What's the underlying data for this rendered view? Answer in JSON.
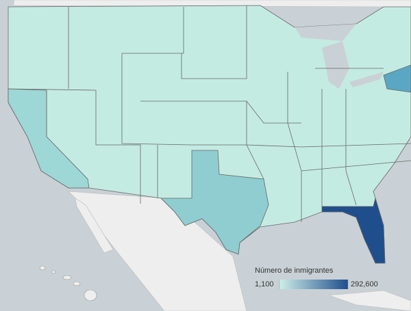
{
  "legend": {
    "title": "Número de inmigrantes",
    "min": {
      "value": 1100,
      "label": "1,100"
    },
    "max": {
      "value": 292600,
      "label": "292,600"
    },
    "colors": [
      "#cdeee8",
      "#1f4e8c"
    ]
  }
}
